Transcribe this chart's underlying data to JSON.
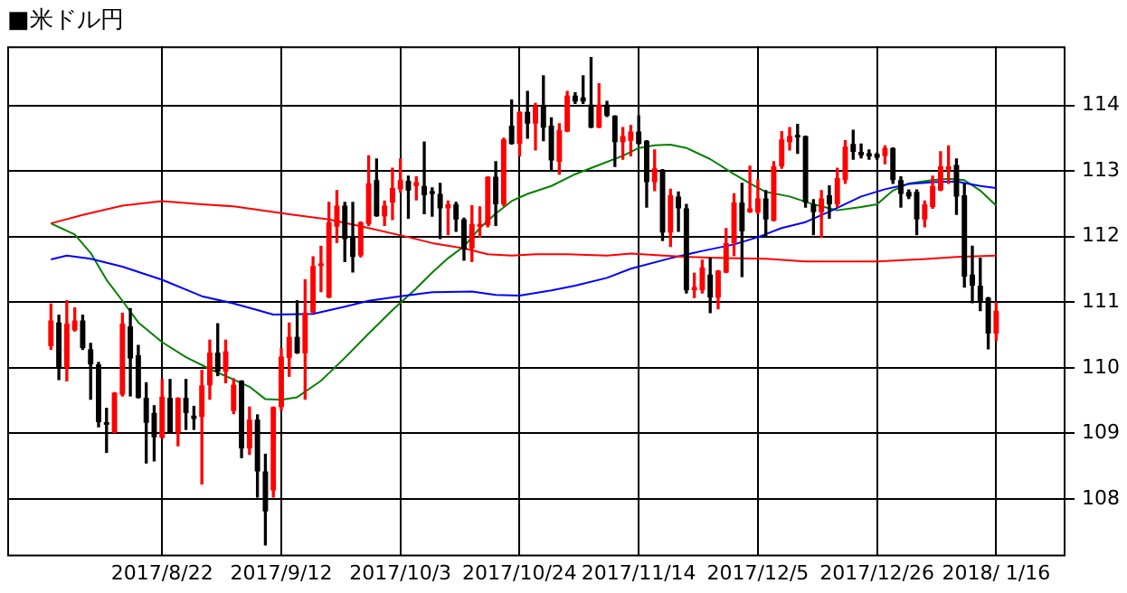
{
  "chart_data": {
    "type": "candlestick",
    "title": "■米ドル円",
    "categories": [
      null,
      null,
      null,
      null,
      null,
      null,
      null,
      null,
      null,
      null,
      null,
      null,
      null,
      null,
      null,
      null,
      null,
      null,
      null,
      "2017/8/22",
      null,
      null,
      null,
      null,
      null,
      null,
      null,
      null,
      null,
      null,
      null,
      null,
      null,
      null,
      "2017/9/12",
      null,
      null,
      null,
      null,
      null,
      null,
      null,
      null,
      null,
      null,
      null,
      null,
      null,
      null,
      "2017/10/3",
      null,
      null,
      null,
      null,
      null,
      null,
      null,
      null,
      null,
      null,
      null,
      null,
      null,
      null,
      "2017/10/24",
      null,
      null,
      null,
      null,
      null,
      null,
      null,
      null,
      null,
      null,
      null,
      null,
      null,
      null,
      "2017/11/14",
      null,
      null,
      null,
      null,
      null,
      null,
      null,
      null,
      null,
      null,
      null,
      null,
      null,
      null,
      "2017/12/5",
      null,
      null,
      null,
      null,
      null,
      null,
      null,
      null,
      null,
      null,
      null,
      null,
      null,
      null,
      "2017/12/26",
      null,
      null,
      null,
      null,
      null,
      null,
      null,
      null,
      null,
      null,
      null,
      null,
      null,
      null,
      "2018/ 1/16",
      null,
      null,
      null,
      null,
      null,
      null,
      null,
      null
    ],
    "ohlc": [
      null,
      null,
      null,
      null,
      null,
      [
        110.33,
        110.97,
        110.28,
        110.72
      ],
      [
        110.69,
        110.8,
        109.82,
        110.0
      ],
      [
        110.0,
        111.02,
        109.8,
        110.67
      ],
      [
        110.57,
        110.91,
        110.56,
        110.72
      ],
      [
        110.72,
        110.8,
        110.28,
        110.3
      ],
      [
        110.28,
        110.37,
        109.52,
        110.05
      ],
      [
        110.05,
        110.08,
        109.1,
        109.17
      ],
      [
        109.17,
        109.38,
        108.71,
        109.13
      ],
      [
        109.01,
        109.62,
        109.01,
        109.62
      ],
      [
        109.59,
        110.83,
        109.57,
        110.67
      ],
      [
        110.63,
        110.9,
        109.57,
        110.14
      ],
      [
        110.19,
        110.34,
        109.54,
        109.54
      ],
      [
        109.54,
        109.77,
        108.55,
        109.16
      ],
      [
        109.31,
        109.42,
        108.58,
        108.94
      ],
      [
        108.93,
        109.82,
        108.93,
        109.56
      ],
      [
        109.54,
        109.82,
        109.01,
        109.01
      ],
      [
        109.01,
        109.54,
        108.81,
        109.54
      ],
      [
        109.54,
        109.82,
        109.06,
        109.31
      ],
      [
        109.27,
        109.41,
        109.06,
        109.22
      ],
      [
        109.25,
        109.96,
        108.23,
        109.73
      ],
      [
        109.73,
        110.42,
        109.52,
        110.23
      ],
      [
        110.23,
        110.67,
        109.88,
        109.94
      ],
      [
        109.94,
        110.42,
        109.77,
        110.25
      ],
      [
        109.34,
        109.83,
        109.3,
        109.74
      ],
      [
        109.8,
        109.8,
        108.63,
        108.77
      ],
      [
        108.77,
        109.4,
        108.68,
        109.21
      ],
      [
        109.21,
        109.28,
        108.03,
        108.42
      ],
      [
        108.42,
        108.68,
        107.3,
        107.81
      ],
      [
        108.13,
        109.4,
        108.03,
        109.4
      ],
      [
        109.4,
        110.29,
        109.35,
        110.17
      ],
      [
        110.15,
        110.68,
        109.87,
        110.47
      ],
      [
        110.47,
        111.02,
        110.22,
        110.22
      ],
      [
        110.22,
        111.34,
        109.52,
        110.84
      ],
      [
        110.84,
        111.69,
        110.84,
        111.55
      ],
      [
        111.55,
        111.85,
        111.16,
        111.59
      ],
      [
        111.07,
        112.52,
        111.07,
        112.22
      ],
      [
        112.15,
        112.7,
        111.91,
        112.47
      ],
      [
        112.47,
        112.52,
        111.62,
        111.96
      ],
      [
        112.0,
        112.52,
        111.46,
        111.69
      ],
      [
        111.71,
        112.22,
        111.69,
        112.22
      ],
      [
        112.19,
        113.23,
        112.17,
        112.81
      ],
      [
        112.86,
        113.18,
        112.31,
        112.31
      ],
      [
        112.31,
        112.54,
        112.17,
        112.47
      ],
      [
        112.52,
        113.04,
        112.26,
        112.74
      ],
      [
        112.72,
        113.18,
        112.68,
        112.86
      ],
      [
        112.85,
        112.92,
        112.28,
        112.7
      ],
      [
        112.77,
        112.91,
        112.56,
        112.83
      ],
      [
        112.77,
        113.44,
        112.35,
        112.63
      ],
      [
        112.69,
        112.74,
        112.31,
        112.65
      ],
      [
        112.65,
        112.81,
        111.97,
        112.43
      ],
      [
        112.43,
        112.54,
        112.03,
        112.49
      ],
      [
        112.49,
        112.52,
        112.08,
        112.26
      ],
      [
        112.26,
        112.28,
        111.64,
        111.8
      ],
      [
        111.82,
        112.47,
        111.62,
        112.19
      ],
      [
        112.15,
        112.45,
        111.99,
        112.19
      ],
      [
        112.17,
        112.91,
        112.15,
        112.91
      ],
      [
        112.91,
        113.14,
        112.17,
        112.49
      ],
      [
        112.49,
        113.5,
        112.47,
        113.48
      ],
      [
        113.69,
        114.08,
        113.41,
        113.41
      ],
      [
        113.41,
        113.9,
        113.23,
        113.9
      ],
      [
        113.9,
        114.21,
        113.5,
        113.72
      ],
      [
        113.72,
        114.03,
        113.32,
        113.99
      ],
      [
        113.99,
        114.45,
        113.46,
        113.66
      ],
      [
        113.69,
        113.81,
        113.0,
        113.16
      ],
      [
        113.14,
        113.72,
        112.95,
        113.62
      ],
      [
        113.6,
        114.21,
        113.6,
        114.15
      ],
      [
        114.15,
        114.19,
        114.03,
        114.06
      ],
      [
        114.12,
        114.45,
        114.03,
        114.06
      ],
      [
        114.01,
        114.73,
        113.66,
        113.66
      ],
      [
        113.66,
        114.33,
        113.66,
        114.01
      ],
      [
        114.01,
        114.06,
        113.83,
        113.84
      ],
      [
        113.84,
        113.84,
        113.07,
        113.44
      ],
      [
        113.44,
        113.66,
        113.18,
        113.53
      ],
      [
        113.46,
        113.69,
        113.23,
        113.6
      ],
      [
        113.6,
        113.84,
        113.41,
        113.41
      ],
      [
        113.46,
        113.46,
        112.45,
        112.83
      ],
      [
        112.83,
        113.32,
        112.7,
        113.04
      ],
      [
        113.02,
        113.02,
        111.94,
        112.06
      ],
      [
        112.06,
        112.72,
        111.85,
        112.63
      ],
      [
        112.61,
        112.68,
        112.08,
        112.43
      ],
      [
        112.43,
        112.49,
        111.14,
        111.18
      ],
      [
        111.18,
        111.44,
        111.07,
        111.23
      ],
      [
        111.18,
        111.64,
        111.14,
        111.53
      ],
      [
        111.42,
        111.67,
        110.84,
        111.07
      ],
      [
        111.07,
        111.48,
        110.9,
        111.48
      ],
      [
        111.45,
        112.12,
        111.45,
        111.9
      ],
      [
        111.9,
        112.65,
        111.71,
        112.52
      ],
      [
        112.52,
        112.81,
        111.39,
        112.08
      ],
      [
        112.37,
        113.07,
        112.37,
        112.43
      ],
      [
        112.37,
        112.86,
        112.35,
        112.58
      ],
      [
        112.58,
        112.7,
        111.99,
        112.26
      ],
      [
        112.24,
        113.14,
        112.24,
        113.07
      ],
      [
        113.07,
        113.6,
        113.04,
        113.48
      ],
      [
        113.44,
        113.66,
        113.32,
        113.53
      ],
      [
        113.55,
        113.71,
        113.27,
        113.51
      ],
      [
        113.53,
        113.53,
        112.45,
        112.52
      ],
      [
        112.49,
        112.56,
        112.03,
        112.37
      ],
      [
        112.37,
        112.7,
        111.99,
        112.58
      ],
      [
        112.63,
        112.77,
        112.28,
        112.49
      ],
      [
        112.49,
        113.04,
        112.45,
        112.89
      ],
      [
        112.86,
        113.46,
        112.81,
        113.37
      ],
      [
        113.41,
        113.62,
        113.18,
        113.29
      ],
      [
        113.29,
        113.41,
        113.2,
        113.24
      ],
      [
        113.27,
        113.32,
        113.18,
        113.22
      ],
      [
        113.26,
        113.27,
        113.18,
        113.2
      ],
      [
        113.23,
        113.38,
        113.11,
        113.35
      ],
      [
        113.35,
        113.35,
        112.81,
        112.86
      ],
      [
        112.86,
        112.91,
        112.45,
        112.65
      ],
      [
        112.68,
        112.71,
        112.58,
        112.61
      ],
      [
        112.68,
        112.71,
        112.03,
        112.26
      ],
      [
        112.26,
        112.54,
        112.15,
        112.49
      ],
      [
        112.45,
        112.92,
        112.43,
        112.77
      ],
      [
        112.7,
        113.29,
        112.7,
        113.07
      ],
      [
        113.02,
        113.38,
        112.81,
        113.07
      ],
      [
        113.09,
        113.18,
        112.34,
        112.61
      ],
      [
        112.63,
        112.8,
        111.23,
        111.39
      ],
      [
        111.42,
        111.85,
        110.99,
        111.25
      ],
      [
        111.25,
        111.67,
        110.87,
        110.99
      ],
      [
        111.07,
        111.07,
        110.29,
        110.52
      ],
      [
        110.52,
        110.99,
        110.42,
        110.87
      ],
      null,
      null,
      null,
      null,
      null,
      null,
      null,
      null
    ],
    "colors": [
      null,
      null,
      null,
      null,
      null,
      "#ff0000",
      "#000000",
      "#ff0000",
      "#ff0000",
      "#000000",
      "#000000",
      "#000000",
      "#000000",
      "#ff0000",
      "#ff0000",
      "#000000",
      "#000000",
      "#000000",
      "#000000",
      "#ff0000",
      "#000000",
      "#ff0000",
      "#000000",
      "#000000",
      "#ff0000",
      "#ff0000",
      "#000000",
      "#ff0000",
      "#ff0000",
      "#000000",
      "#ff0000",
      "#000000",
      "#000000",
      "#ff0000",
      "#ff0000",
      "#ff0000",
      "#000000",
      "#ff0000",
      "#ff0000",
      "#ff0000",
      "#ff0000",
      "#ff0000",
      "#000000",
      "#000000",
      "#ff0000",
      "#ff0000",
      "#000000",
      "#ff0000",
      "#ff0000",
      "#ff0000",
      "#000000",
      "#ff0000",
      "#000000",
      "#000000",
      "#000000",
      "#ff0000",
      "#000000",
      "#000000",
      "#ff0000",
      "#ff0000",
      "#ff0000",
      "#000000",
      "#ff0000",
      "#000000",
      "#ff0000",
      "#000000",
      "#ff0000",
      "#000000",
      "#000000",
      "#ff0000",
      "#ff0000",
      "#000000",
      "#000000",
      "#000000",
      "#ff0000",
      "#000000",
      "#000000",
      "#ff0000",
      "#ff0000",
      "#000000",
      "#000000",
      "#ff0000",
      "#000000",
      "#ff0000",
      "#000000",
      "#000000",
      "#ff0000",
      "#ff0000",
      "#000000",
      "#ff0000",
      "#ff0000",
      "#ff0000",
      "#000000",
      "#ff0000",
      "#ff0000",
      "#000000",
      "#ff0000",
      "#ff0000",
      "#ff0000",
      "#000000",
      "#000000",
      "#000000",
      "#ff0000",
      "#000000",
      "#ff0000",
      "#ff0000",
      "#000000",
      "#000000",
      "#000000",
      "#000000",
      "#ff0000",
      "#000000",
      "#000000",
      "#000000",
      "#000000",
      "#ff0000",
      "#ff0000",
      "#ff0000",
      "#ff0000",
      "#000000",
      "#000000",
      "#000000",
      "#000000",
      "#000000",
      "#ff0000",
      null,
      null,
      null,
      null,
      null,
      null,
      null,
      null
    ],
    "series": [
      {
        "type": "line",
        "color": "#ff0000",
        "values": [
          null,
          null,
          null,
          null,
          null,
          112.2,
          null,
          null,
          null,
          112.33,
          null,
          null,
          null,
          null,
          112.47,
          null,
          null,
          null,
          null,
          112.54,
          null,
          null,
          null,
          null,
          112.49,
          null,
          null,
          null,
          112.46,
          null,
          null,
          null,
          null,
          null,
          null,
          112.34,
          null,
          null,
          null,
          null,
          112.26,
          null,
          null,
          null,
          null,
          112.13,
          null,
          null,
          null,
          null,
          111.99,
          null,
          null,
          111.9,
          null,
          null,
          null,
          111.82,
          null,
          null,
          111.73,
          null,
          null,
          111.71,
          null,
          null,
          111.73,
          null,
          null,
          null,
          111.73,
          null,
          null,
          null,
          null,
          111.71,
          null,
          null,
          111.74,
          null,
          null,
          null,
          null,
          null,
          null,
          111.69,
          null,
          null,
          null,
          null,
          111.67,
          null,
          null,
          null,
          null,
          111.66,
          null,
          null,
          null,
          null,
          111.62,
          null,
          null,
          null,
          111.62,
          null,
          null,
          null,
          null,
          111.62,
          null,
          null,
          null,
          null,
          111.65,
          null,
          null,
          null,
          null,
          111.69,
          null,
          null,
          null,
          null,
          111.71,
          null,
          null,
          null,
          null,
          null,
          null,
          null,
          null
        ]
      },
      {
        "type": "line",
        "color": "#0000ff",
        "values": [
          null,
          null,
          null,
          null,
          null,
          111.65,
          null,
          111.71,
          null,
          null,
          111.66,
          null,
          null,
          null,
          111.54,
          null,
          null,
          null,
          null,
          111.34,
          null,
          null,
          null,
          null,
          111.09,
          null,
          null,
          null,
          110.98,
          null,
          null,
          110.88,
          null,
          110.81,
          null,
          null,
          null,
          null,
          110.82,
          null,
          null,
          null,
          110.93,
          null,
          null,
          111.02,
          null,
          null,
          null,
          111.09,
          null,
          null,
          null,
          111.15,
          null,
          null,
          null,
          null,
          111.16,
          null,
          null,
          111.11,
          null,
          null,
          111.1,
          null,
          null,
          null,
          111.18,
          null,
          null,
          111.25,
          null,
          null,
          null,
          111.37,
          null,
          null,
          111.51,
          null,
          null,
          null,
          null,
          111.67,
          null,
          null,
          null,
          111.78,
          null,
          null,
          null,
          111.88,
          null,
          null,
          111.99,
          null,
          null,
          112.13,
          null,
          null,
          112.22,
          null,
          null,
          112.38,
          null,
          null,
          null,
          112.61,
          null,
          null,
          112.72,
          null,
          null,
          112.8,
          null,
          null,
          112.83,
          null,
          null,
          112.84,
          null,
          null,
          112.77,
          null,
          112.74,
          null,
          null,
          null,
          null,
          null,
          null,
          null,
          null
        ]
      },
      {
        "type": "line",
        "color": "#008000",
        "values": [
          null,
          null,
          null,
          null,
          null,
          112.2,
          null,
          null,
          112.03,
          null,
          111.75,
          null,
          111.34,
          null,
          111.02,
          null,
          110.69,
          null,
          null,
          110.39,
          null,
          null,
          110.16,
          null,
          null,
          109.98,
          null,
          null,
          109.82,
          null,
          109.71,
          null,
          109.52,
          null,
          109.51,
          null,
          109.55,
          null,
          null,
          109.8,
          null,
          null,
          110.15,
          null,
          null,
          110.52,
          null,
          null,
          110.88,
          null,
          null,
          111.21,
          null,
          111.45,
          null,
          111.67,
          null,
          111.85,
          null,
          112.13,
          null,
          112.35,
          null,
          112.54,
          null,
          112.65,
          null,
          null,
          112.77,
          null,
          null,
          112.95,
          null,
          null,
          113.09,
          null,
          null,
          113.23,
          null,
          113.35,
          null,
          113.39,
          null,
          113.4,
          null,
          113.35,
          null,
          null,
          113.18,
          null,
          null,
          112.95,
          null,
          112.81,
          null,
          112.68,
          null,
          null,
          112.61,
          null,
          null,
          112.49,
          null,
          112.43,
          112.4,
          null,
          null,
          112.45,
          null,
          112.49,
          null,
          112.7,
          null,
          112.81,
          null,
          null,
          112.86,
          null,
          112.88,
          null,
          112.86,
          null,
          112.7,
          null,
          112.47,
          null,
          null,
          null,
          null,
          null,
          null,
          null,
          null
        ]
      }
    ],
    "ylim": [
      107.15,
      114.9
    ],
    "yticks": [
      108,
      109,
      110,
      111,
      112,
      113,
      114
    ],
    "grid": true,
    "legend": false
  }
}
